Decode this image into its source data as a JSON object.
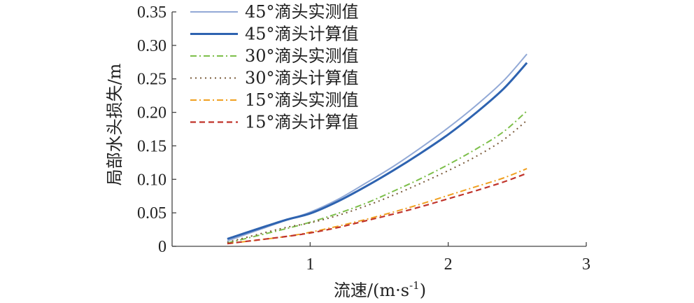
{
  "chart_data": {
    "type": "line",
    "xlabel": "流速/(m·s",
    "xlabel_sup": "-1",
    "xlabel_close": ")",
    "ylabel": "局部水头损失/m",
    "xlim": [
      0,
      3
    ],
    "ylim": [
      0,
      0.35
    ],
    "x_ticks": [
      "1",
      "2",
      "3"
    ],
    "y_ticks": [
      "0",
      "0.05",
      "0.10",
      "0.15",
      "0.20",
      "0.25",
      "0.30",
      "0.35"
    ],
    "grid": false,
    "legend_position": "top-left",
    "series": [
      {
        "name": "45°滴头实测值",
        "color": "#92a9d6",
        "style": "solid",
        "x": [
          0.4,
          0.8,
          1.0,
          1.2,
          1.4,
          1.6,
          1.8,
          2.0,
          2.2,
          2.4,
          2.57
        ],
        "y": [
          0.008,
          0.037,
          0.051,
          0.07,
          0.094,
          0.119,
          0.147,
          0.177,
          0.21,
          0.247,
          0.287
        ]
      },
      {
        "name": "45°滴头计算值",
        "color": "#2e63b0",
        "style": "solid-thick",
        "x": [
          0.4,
          0.8,
          1.0,
          1.2,
          1.4,
          1.6,
          1.8,
          2.0,
          2.2,
          2.4,
          2.57
        ],
        "y": [
          0.011,
          0.038,
          0.049,
          0.067,
          0.089,
          0.113,
          0.139,
          0.167,
          0.199,
          0.235,
          0.274
        ]
      },
      {
        "name": "30°滴头实测值",
        "color": "#7dbf4a",
        "style": "dash-dot",
        "x": [
          0.4,
          0.8,
          1.0,
          1.2,
          1.4,
          1.6,
          1.8,
          2.0,
          2.2,
          2.4,
          2.57
        ],
        "y": [
          0.005,
          0.025,
          0.036,
          0.049,
          0.064,
          0.082,
          0.101,
          0.122,
          0.145,
          0.171,
          0.202
        ]
      },
      {
        "name": "30°滴头计算值",
        "color": "#7a5a3a",
        "style": "dotted",
        "x": [
          0.4,
          0.8,
          1.0,
          1.2,
          1.4,
          1.6,
          1.8,
          2.0,
          2.2,
          2.4,
          2.57
        ],
        "y": [
          0.006,
          0.027,
          0.035,
          0.046,
          0.06,
          0.076,
          0.094,
          0.113,
          0.134,
          0.159,
          0.188
        ]
      },
      {
        "name": "15°滴头实测值",
        "color": "#f0a020",
        "style": "dash-dot",
        "x": [
          0.4,
          0.8,
          1.0,
          1.2,
          1.4,
          1.6,
          1.8,
          2.0,
          2.2,
          2.4,
          2.57
        ],
        "y": [
          0.004,
          0.014,
          0.021,
          0.03,
          0.04,
          0.051,
          0.063,
          0.076,
          0.089,
          0.102,
          0.116
        ]
      },
      {
        "name": "15°滴头计算值",
        "color": "#c0332a",
        "style": "dashed",
        "x": [
          0.4,
          0.8,
          1.0,
          1.2,
          1.4,
          1.6,
          1.8,
          2.0,
          2.2,
          2.4,
          2.57
        ],
        "y": [
          0.004,
          0.014,
          0.02,
          0.028,
          0.038,
          0.048,
          0.059,
          0.071,
          0.083,
          0.096,
          0.109
        ]
      }
    ]
  }
}
